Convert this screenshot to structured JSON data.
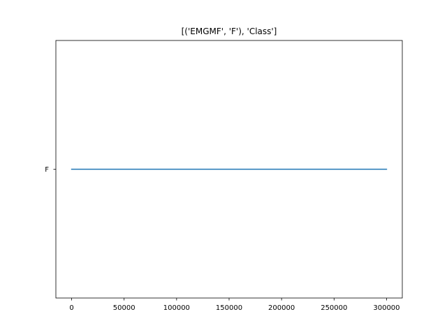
{
  "chart_data": {
    "type": "line",
    "title": "[('EMGMF', 'F'), 'Class']",
    "xlabel": "",
    "ylabel": "",
    "x_ticks": [
      "0",
      "50000",
      "100000",
      "150000",
      "200000",
      "250000",
      "300000"
    ],
    "y_categories": [
      "F"
    ],
    "xlim": [
      -15000,
      315000
    ],
    "series": [
      {
        "color": "#1f77b4",
        "x": [
          0,
          300000
        ],
        "y": [
          "F",
          "F"
        ]
      }
    ],
    "grid": false,
    "legend": "none"
  }
}
